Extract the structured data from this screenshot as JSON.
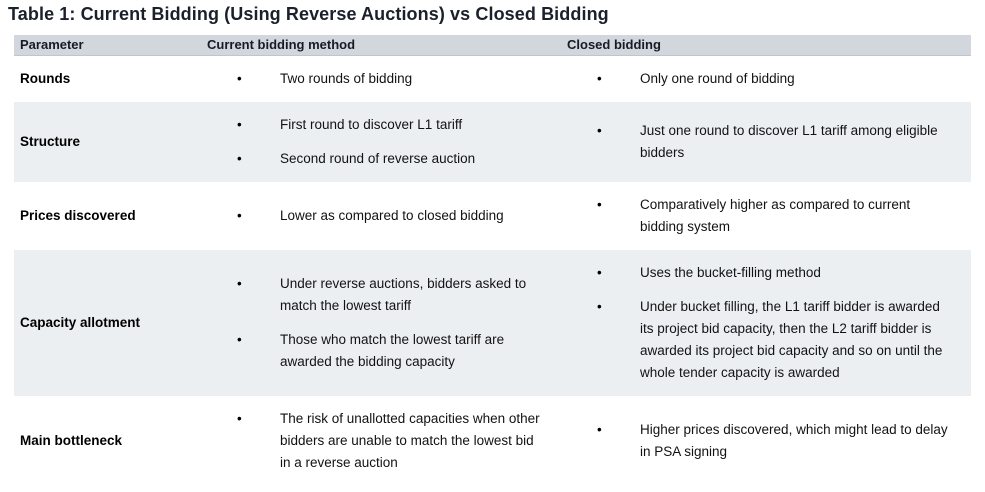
{
  "title": "Table 1: Current Bidding (Using Reverse Auctions) vs Closed Bidding",
  "table": {
    "bullet_glyph": "•",
    "columns": [
      "Parameter",
      "Current bidding method",
      "Closed bidding"
    ],
    "rows": [
      {
        "parameter": "Rounds",
        "current": [
          "Two rounds of bidding"
        ],
        "closed": [
          "Only one round of bidding"
        ]
      },
      {
        "parameter": "Structure",
        "current": [
          "First round to discover L1 tariff",
          "Second round of reverse auction"
        ],
        "closed": [
          "Just one round to discover L1 tariff among eligible bidders"
        ]
      },
      {
        "parameter": "Prices discovered",
        "current": [
          "Lower as compared to closed bidding"
        ],
        "closed": [
          "Comparatively higher as compared to current bidding system"
        ]
      },
      {
        "parameter": "Capacity allotment",
        "current": [
          "Under reverse auctions, bidders asked to match the lowest tariff",
          "Those who match the lowest tariff are awarded the bidding capacity"
        ],
        "closed": [
          "Uses the bucket-filling method",
          "Under bucket filling, the L1 tariff bidder is awarded its project bid capacity, then the L2 tariff bidder is awarded its project bid capacity and so on until the whole tender capacity is awarded"
        ]
      },
      {
        "parameter": "Main bottleneck",
        "current": [
          "The risk of unallotted capacities when other bidders are unable to match the lowest bid in a reverse auction"
        ],
        "closed": [
          "Higher prices discovered, which might lead to delay in PSA signing"
        ]
      }
    ]
  },
  "colors": {
    "header_bg": "#d2d7de",
    "alt_row_bg": "#eceff2",
    "title_color": "#1b202b",
    "header_text": "#171c24",
    "body_text": "#121212"
  }
}
